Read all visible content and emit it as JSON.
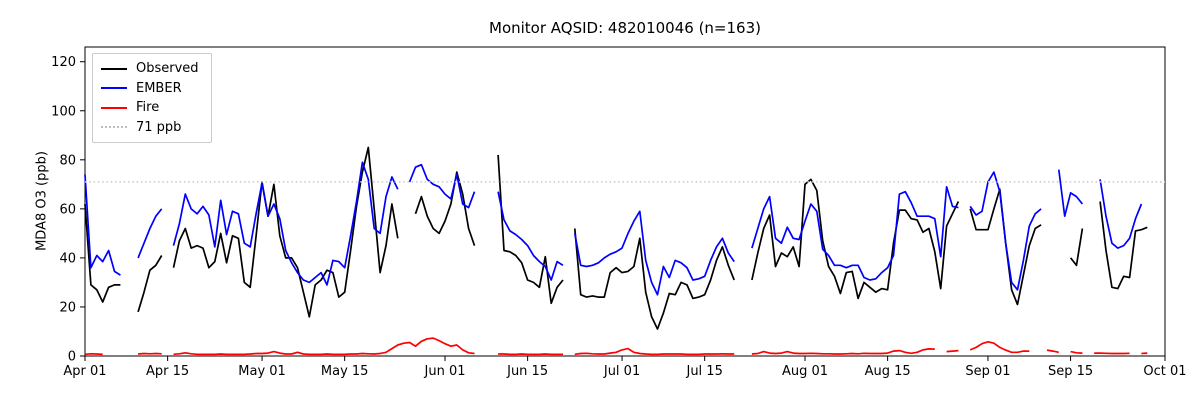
{
  "chart_data": {
    "type": "line",
    "title": "Monitor AQSID: 482010046 (n=163)",
    "ylabel": "MDA8 O3 (ppb)",
    "xlabel": "",
    "ylim": [
      0,
      126
    ],
    "yticks": [
      0,
      20,
      40,
      60,
      80,
      100,
      120
    ],
    "x_range": {
      "start": "Apr 01",
      "end": "Oct 01",
      "total_days": 183
    },
    "xticks": [
      {
        "label": "Apr 01",
        "day": 0
      },
      {
        "label": "Apr 15",
        "day": 14
      },
      {
        "label": "May 01",
        "day": 30
      },
      {
        "label": "May 15",
        "day": 44
      },
      {
        "label": "Jun 01",
        "day": 61
      },
      {
        "label": "Jun 15",
        "day": 75
      },
      {
        "label": "Jul 01",
        "day": 91
      },
      {
        "label": "Jul 15",
        "day": 105
      },
      {
        "label": "Aug 01",
        "day": 122
      },
      {
        "label": "Aug 15",
        "day": 136
      },
      {
        "label": "Sep 01",
        "day": 153
      },
      {
        "label": "Sep 15",
        "day": 167
      },
      {
        "label": "Oct 01",
        "day": 183
      }
    ],
    "threshold": {
      "label": "71 ppb",
      "value": 71,
      "color": "#c8c8c8",
      "style": "dotted"
    },
    "legend_position": "upper left",
    "grid": false,
    "series": [
      {
        "name": "Observed",
        "color": "#000000",
        "values": [
          62,
          29,
          27,
          22,
          28,
          29,
          29,
          null,
          null,
          18,
          26,
          35,
          37,
          41,
          null,
          36,
          47,
          52,
          44,
          45,
          44,
          36,
          38.5,
          50,
          38,
          49,
          48,
          30,
          28,
          49,
          71,
          57,
          70,
          49,
          40,
          40,
          36,
          26,
          16,
          29,
          31,
          35,
          34,
          24,
          26,
          43,
          61,
          75,
          85,
          60,
          34,
          45,
          62,
          48,
          null,
          null,
          58,
          65,
          57,
          52,
          50,
          55,
          62,
          75,
          66,
          52,
          45,
          null,
          null,
          null,
          82,
          43,
          42.5,
          41,
          38,
          31,
          30,
          28,
          40.5,
          21.5,
          28,
          31,
          null,
          52,
          25,
          24,
          24.5,
          24,
          24,
          34,
          36,
          34,
          34.5,
          36.5,
          48,
          26,
          16,
          11,
          17.5,
          25.5,
          25,
          30,
          29,
          23.5,
          24,
          25,
          31,
          39,
          44.5,
          37,
          31,
          null,
          null,
          31,
          42,
          52,
          57.5,
          36.5,
          42,
          40.5,
          44.5,
          36.5,
          70,
          72,
          67.5,
          47,
          36.5,
          32.5,
          25.5,
          34,
          34.5,
          23.5,
          30,
          28,
          26,
          27.5,
          27,
          46,
          59.5,
          59.5,
          56,
          55.5,
          50.5,
          52,
          42.5,
          27.5,
          53,
          58,
          63,
          null,
          60,
          51.5,
          51.5,
          51.5,
          60,
          68,
          46,
          27,
          21,
          33,
          45,
          52,
          53.5,
          null,
          null,
          null,
          null,
          40,
          37,
          52,
          null,
          null,
          63,
          43,
          28,
          27.5,
          32.5,
          32,
          51,
          51.5,
          52.5,
          null,
          null,
          null
        ]
      },
      {
        "name": "EMBER",
        "color": "#0000ff",
        "values": [
          74,
          36,
          41,
          38.5,
          43,
          34.5,
          33,
          null,
          null,
          40,
          46,
          52,
          57,
          60,
          null,
          45,
          54,
          66,
          60,
          58,
          61,
          57.5,
          44.5,
          63.5,
          49.5,
          59,
          58,
          46,
          44.5,
          58,
          70.5,
          57,
          62,
          56,
          43,
          38,
          34,
          31,
          30,
          32,
          34,
          29,
          39,
          38.5,
          36,
          49,
          63,
          79,
          72,
          52,
          50,
          65,
          73,
          68,
          null,
          71,
          77,
          78,
          72,
          70,
          69,
          66,
          64,
          74,
          62,
          60.5,
          67,
          null,
          null,
          null,
          67,
          55.5,
          51,
          49.5,
          47.5,
          45,
          41,
          38.5,
          36.5,
          31,
          38.5,
          37,
          null,
          50,
          37,
          36.5,
          37,
          38,
          40,
          41.5,
          42.5,
          44,
          50,
          55,
          59,
          39,
          30,
          25,
          36.5,
          32,
          39,
          38,
          36,
          31,
          31.5,
          32.5,
          39,
          44.5,
          48,
          42,
          38.5,
          null,
          null,
          44,
          52,
          60,
          65,
          48,
          46,
          52.5,
          48,
          47.5,
          55,
          62,
          59,
          43.5,
          41,
          37,
          37,
          36,
          37,
          37,
          32,
          31,
          31.5,
          34,
          36,
          41,
          66,
          67,
          62.5,
          57,
          57,
          57,
          56,
          40.5,
          69,
          61,
          60.5,
          null,
          61,
          57.5,
          59,
          71,
          75,
          67,
          46,
          30,
          27,
          39,
          53,
          58,
          60,
          null,
          null,
          76,
          57,
          66.5,
          65,
          62,
          null,
          null,
          72,
          57,
          46,
          44,
          45,
          48,
          56,
          62,
          null,
          null,
          null,
          null
        ]
      },
      {
        "name": "Fire",
        "color": "#ff0000",
        "values": [
          0.7,
          0.9,
          0.8,
          0.7,
          null,
          null,
          null,
          null,
          null,
          0.8,
          1,
          0.9,
          1,
          0.9,
          null,
          0.7,
          0.9,
          1.3,
          0.9,
          0.7,
          0.7,
          0.7,
          0.7,
          0.8,
          0.7,
          0.7,
          0.7,
          0.7,
          0.8,
          1,
          1,
          1.2,
          1.8,
          1.2,
          0.8,
          0.8,
          1.5,
          0.8,
          0.7,
          0.7,
          0.7,
          0.8,
          0.7,
          0.7,
          0.7,
          0.8,
          0.8,
          1,
          0.9,
          0.8,
          1,
          1.5,
          3,
          4.5,
          5.2,
          5.5,
          4,
          6,
          7,
          7.3,
          6.3,
          5,
          4,
          4.5,
          2.5,
          1.3,
          1,
          null,
          null,
          null,
          0.8,
          0.8,
          0.7,
          0.7,
          0.8,
          0.7,
          0.7,
          0.7,
          0.8,
          0.7,
          0.7,
          0.7,
          null,
          0.7,
          1,
          1.1,
          0.9,
          0.8,
          0.8,
          1.2,
          1.5,
          2.5,
          3,
          1.5,
          1,
          0.8,
          0.7,
          0.7,
          0.8,
          0.8,
          0.8,
          0.8,
          0.7,
          0.7,
          0.7,
          0.8,
          0.8,
          0.8,
          0.9,
          0.8,
          0.8,
          null,
          null,
          0.8,
          1,
          1.8,
          1.2,
          1,
          1.2,
          1.8,
          1.2,
          1,
          1,
          1.1,
          1,
          0.9,
          0.9,
          0.8,
          0.8,
          0.9,
          1,
          0.9,
          1.1,
          1,
          1,
          1,
          1.2,
          2,
          2.2,
          1.5,
          1.1,
          1.5,
          2.5,
          2.9,
          2.8,
          null,
          1.8,
          2,
          2.2,
          null,
          2.5,
          3.5,
          5,
          5.8,
          5.2,
          3.5,
          2.4,
          1.5,
          1.5,
          2,
          2,
          null,
          null,
          2.4,
          2,
          1.5,
          null,
          1.8,
          1.3,
          1.2,
          null,
          1.2,
          1.2,
          1.1,
          1,
          1,
          1,
          1.1,
          null,
          1,
          1.2,
          null,
          null,
          null
        ]
      }
    ]
  }
}
